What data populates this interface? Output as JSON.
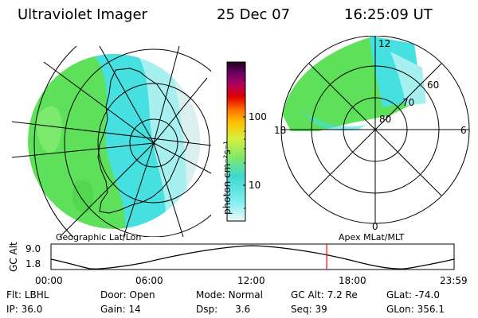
{
  "header": {
    "instrument": "Ultraviolet Imager",
    "date": "25 Dec 07",
    "time": "16:25:09 UT"
  },
  "colorbar": {
    "label": "photon cm⁻²s⁻¹",
    "ticks": [
      "100",
      "10"
    ]
  },
  "panels": {
    "left_label": "Geographic Lat/Lon",
    "right_label": "Apex MLat/MLT"
  },
  "polar_plot": {
    "mlt_labels": [
      "12",
      "18",
      "6",
      "0"
    ],
    "mlat_labels": [
      "60",
      "70",
      "80"
    ]
  },
  "altitude_plot": {
    "ylabel": "GC Alt",
    "yticks": [
      "9.0",
      "1.8"
    ],
    "xticks": [
      "00:00",
      "06:00",
      "12:00",
      "18:00",
      "23:59"
    ],
    "marker_fraction": 0.684,
    "marker_color": "#ff0000"
  },
  "status": {
    "flt_label": "Flt:",
    "flt_value": "LBHL",
    "ip_label": "IP:",
    "ip_value": "36.0",
    "door_label": "Door:",
    "door_value": "Open",
    "gain_label": "Gain:",
    "gain_value": "14",
    "mode_label": "Mode:",
    "mode_value": "Normal",
    "dsp_label": "Dsp:",
    "dsp_value": "3.6",
    "gcalt_label": "GC Alt:",
    "gcalt_value": "7.2 Re",
    "seq_label": "Seq:",
    "seq_value": "39",
    "glat_label": "GLat:",
    "glat_value": "-74.0",
    "glon_label": "GLon:",
    "glon_value": "356.1"
  },
  "colors": {
    "green": "#5ee05a",
    "green_light": "#8ff07c",
    "cyan": "#46e0e0",
    "cyan_light": "#a8f0f0",
    "pale": "#dcefef",
    "marker": "#ff0000"
  }
}
